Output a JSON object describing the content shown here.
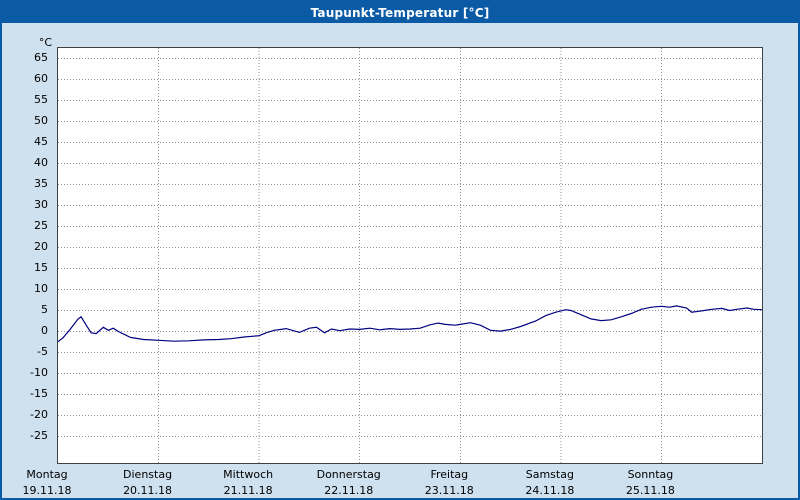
{
  "title": "Taupunkt-Temperatur [°C]",
  "colors": {
    "title": "#0a5aa5",
    "frame": "#0a5aa5",
    "bg": "#cfe1ef",
    "line": "#000080",
    "grid": "#909090"
  },
  "chart_data": {
    "type": "line",
    "title": "Taupunkt-Temperatur [°C]",
    "xlabel": "",
    "ylabel": "°C",
    "series_name": "Taupunkt-Temperatur",
    "line_color": "#000080",
    "grid": "dotted",
    "legend": "none",
    "ylim": [
      -31.3,
      67.5
    ],
    "yticks": [
      65,
      60,
      55,
      50,
      45,
      40,
      35,
      30,
      25,
      20,
      15,
      10,
      5,
      0,
      -5,
      -10,
      -15,
      -20,
      -25
    ],
    "x_days": [
      {
        "weekday": "Montag",
        "date": "19.11.18"
      },
      {
        "weekday": "Dienstag",
        "date": "20.11.18"
      },
      {
        "weekday": "Mittwoch",
        "date": "21.11.18"
      },
      {
        "weekday": "Donnerstag",
        "date": "22.11.18"
      },
      {
        "weekday": "Freitag",
        "date": "23.11.18"
      },
      {
        "weekday": "Samstag",
        "date": "24.11.18"
      },
      {
        "weekday": "Sonntag",
        "date": "25.11.18"
      }
    ],
    "points_units": "x = days from 19.11.18 00:00, y = °C",
    "points": [
      [
        0.0,
        -2.4
      ],
      [
        0.05,
        -1.5
      ],
      [
        0.12,
        0.5
      ],
      [
        0.2,
        3.0
      ],
      [
        0.23,
        3.5
      ],
      [
        0.28,
        1.5
      ],
      [
        0.33,
        -0.3
      ],
      [
        0.38,
        -0.5
      ],
      [
        0.45,
        1.0
      ],
      [
        0.5,
        0.3
      ],
      [
        0.55,
        0.8
      ],
      [
        0.6,
        0.0
      ],
      [
        0.72,
        -1.4
      ],
      [
        0.85,
        -1.9
      ],
      [
        1.0,
        -2.1
      ],
      [
        1.15,
        -2.3
      ],
      [
        1.3,
        -2.2
      ],
      [
        1.45,
        -2.0
      ],
      [
        1.6,
        -1.9
      ],
      [
        1.72,
        -1.7
      ],
      [
        1.85,
        -1.3
      ],
      [
        2.0,
        -1.0
      ],
      [
        2.08,
        -0.2
      ],
      [
        2.15,
        0.3
      ],
      [
        2.27,
        0.7
      ],
      [
        2.4,
        -0.2
      ],
      [
        2.5,
        0.8
      ],
      [
        2.57,
        1.0
      ],
      [
        2.65,
        -0.3
      ],
      [
        2.72,
        0.6
      ],
      [
        2.8,
        0.2
      ],
      [
        2.9,
        0.6
      ],
      [
        3.0,
        0.5
      ],
      [
        3.1,
        0.8
      ],
      [
        3.2,
        0.4
      ],
      [
        3.3,
        0.7
      ],
      [
        3.4,
        0.5
      ],
      [
        3.5,
        0.6
      ],
      [
        3.6,
        0.8
      ],
      [
        3.7,
        1.6
      ],
      [
        3.78,
        2.0
      ],
      [
        3.85,
        1.7
      ],
      [
        3.95,
        1.5
      ],
      [
        4.0,
        1.7
      ],
      [
        4.1,
        2.1
      ],
      [
        4.2,
        1.5
      ],
      [
        4.3,
        0.3
      ],
      [
        4.4,
        0.1
      ],
      [
        4.5,
        0.5
      ],
      [
        4.6,
        1.2
      ],
      [
        4.75,
        2.5
      ],
      [
        4.85,
        3.8
      ],
      [
        4.95,
        4.6
      ],
      [
        5.05,
        5.2
      ],
      [
        5.1,
        5.0
      ],
      [
        5.2,
        4.0
      ],
      [
        5.3,
        3.0
      ],
      [
        5.4,
        2.6
      ],
      [
        5.5,
        2.8
      ],
      [
        5.6,
        3.5
      ],
      [
        5.7,
        4.3
      ],
      [
        5.8,
        5.3
      ],
      [
        5.9,
        5.8
      ],
      [
        6.0,
        6.0
      ],
      [
        6.08,
        5.8
      ],
      [
        6.15,
        6.1
      ],
      [
        6.25,
        5.6
      ],
      [
        6.3,
        4.6
      ],
      [
        6.4,
        4.9
      ],
      [
        6.5,
        5.3
      ],
      [
        6.6,
        5.5
      ],
      [
        6.68,
        5.0
      ],
      [
        6.75,
        5.3
      ],
      [
        6.85,
        5.6
      ],
      [
        6.92,
        5.3
      ],
      [
        7.0,
        5.2
      ]
    ]
  }
}
